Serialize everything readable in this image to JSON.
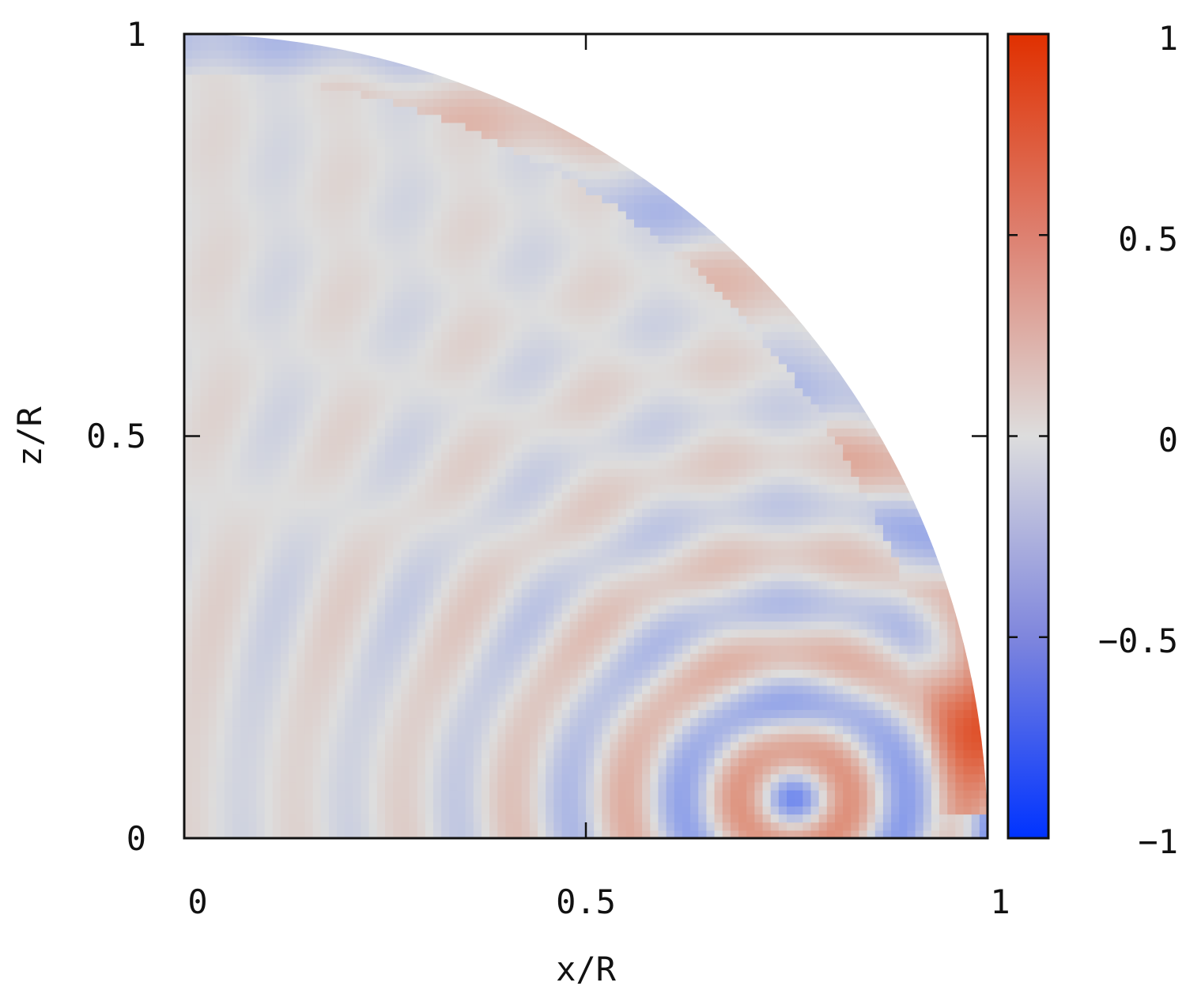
{
  "chart_data": {
    "type": "heatmap",
    "title": "",
    "xlabel": "x/R",
    "ylabel": "z/R",
    "xlim": [
      0,
      1
    ],
    "ylim": [
      0,
      1
    ],
    "x_ticks": [
      "0",
      "0.5",
      "1"
    ],
    "y_ticks": [
      "0",
      "0.5",
      "1"
    ],
    "domain": "quarter disk: x^2 + z^2 <= 1, x >= 0, z >= 0",
    "field_description": "oscillating wave pattern of concentric arcs centered near (x=0.75, z=0.05); amplitude strongest near the equator and outer edge",
    "features": [
      {
        "x": 0.76,
        "z": 0.05,
        "value": -0.45
      },
      {
        "x": 0.84,
        "z": 0.14,
        "value": 0.4
      },
      {
        "x": 0.98,
        "z": 0.15,
        "value": 0.9
      },
      {
        "x": 0.99,
        "z": 0.01,
        "value": -0.6
      }
    ],
    "colorbar": {
      "min": -1,
      "max": 1,
      "ticks": [
        "1",
        "0.5",
        "0",
        "−0.5",
        "−1"
      ],
      "tick_values": [
        1,
        0.5,
        0,
        -0.5,
        -1
      ],
      "colors": {
        "low": "#0033ff",
        "mid": "#dddddd",
        "high": "#e03000"
      }
    }
  }
}
